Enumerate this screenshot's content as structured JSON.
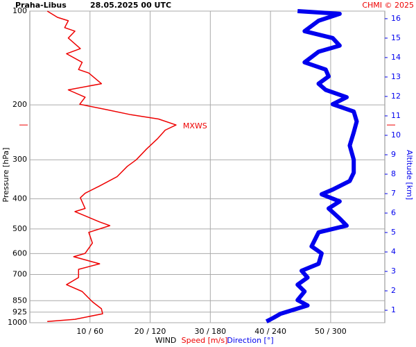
{
  "chart_data": {
    "type": "line",
    "title": "Praha-Libus",
    "subtitle": "28.05.2025 00 UTC",
    "credit": "CHMI © 2025",
    "y_label": "Pressure [hPa]",
    "y2_label": "Altitude [km]",
    "x_label": "WIND",
    "ylim": [
      1000,
      100
    ],
    "log_y": true,
    "yticks": [
      100,
      200,
      300,
      400,
      500,
      600,
      700,
      850,
      925,
      1000
    ],
    "xlim": [
      0,
      59
    ],
    "x2lim": [
      0,
      354
    ],
    "xticks": [
      {
        "value": 10,
        "label": "10 / 60"
      },
      {
        "value": 20,
        "label": "20 / 120"
      },
      {
        "value": 30,
        "label": "30 / 180"
      },
      {
        "value": 40,
        "label": "40 / 240"
      },
      {
        "value": 50,
        "label": "50 / 300"
      }
    ],
    "y2lim": [
      0.36,
      16.39
    ],
    "y2ticks": [
      1,
      2,
      3,
      4,
      5,
      6,
      7,
      8,
      9,
      10,
      11,
      12,
      13,
      14,
      15,
      16
    ],
    "grid": true,
    "annotation": "MXWS",
    "series": [
      {
        "name": "Speed [m/s]",
        "color": "#ee0000",
        "axis": "x",
        "pressure": [
          100,
          104.7,
          107.4,
          113,
          116,
          122,
          132,
          137,
          146,
          154,
          158,
          171,
          179,
          189,
          199,
          207,
          215,
          222,
          232,
          241,
          257,
          277,
          300,
          315,
          340,
          364,
          384,
          397,
          430,
          440,
          475,
          488,
          513,
          555,
          599,
          614,
          647,
          674,
          716,
          755,
          794,
          857,
          902,
          936,
          975,
          991
        ],
        "values": [
          2.9,
          4.6,
          6.4,
          5.8,
          7.5,
          6.4,
          8.4,
          6.1,
          8.7,
          8.1,
          9.8,
          11.9,
          6.4,
          9.2,
          8.3,
          12.7,
          16.8,
          21.4,
          24.3,
          22.5,
          21.2,
          19.4,
          17.7,
          16.2,
          14.5,
          11.6,
          9.2,
          8.4,
          9.2,
          7.5,
          11.6,
          13.3,
          9.8,
          10.4,
          9.2,
          7.3,
          11.6,
          8.1,
          8.1,
          6.1,
          8.7,
          10.4,
          11.9,
          12.1,
          7.5,
          2.9
        ]
      },
      {
        "name": "Direction [°]",
        "color": "#0000ee",
        "axis": "x2",
        "pressure": [
          100,
          102,
          107.4,
          116,
          122,
          129,
          135,
          146,
          154,
          162,
          171,
          179,
          189,
          199,
          210,
          226,
          245,
          270,
          300,
          330,
          351,
          374,
          387,
          408,
          430,
          463,
          488,
          513,
          569,
          599,
          647,
          681,
          716,
          755,
          794,
          846,
          880,
          936,
          964,
          991
        ],
        "values": [
          267,
          309,
          288,
          274,
          302,
          309,
          288,
          274,
          295,
          298,
          288,
          295,
          316,
          302,
          323,
          326,
          323,
          319,
          323,
          323,
          319,
          302,
          291,
          309,
          298,
          309,
          316,
          288,
          281,
          291,
          288,
          271,
          277,
          267,
          274,
          267,
          277,
          250,
          243,
          236
        ]
      }
    ]
  }
}
